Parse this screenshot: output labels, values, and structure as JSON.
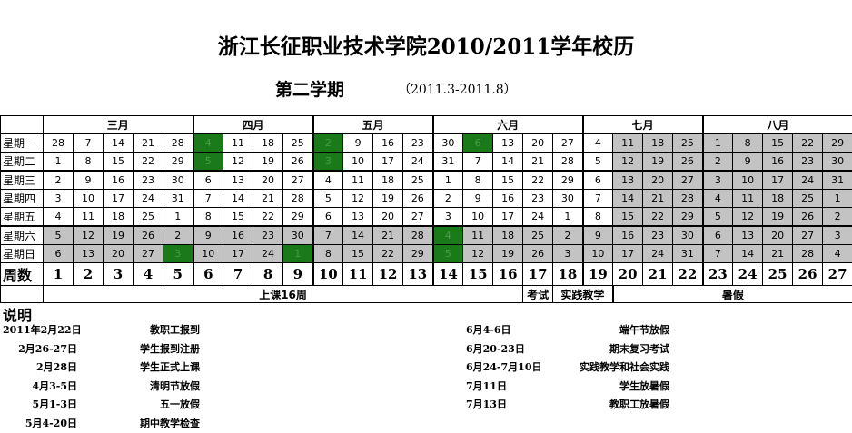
{
  "title": "浙江长征职业技术学院2010/2011学年校历",
  "semester": "第二学期",
  "period": "（2011.3-2011.8）",
  "table": {
    "months": [
      {
        "label": "三月",
        "span": 5
      },
      {
        "label": "四月",
        "span": 4
      },
      {
        "label": "五月",
        "span": 4
      },
      {
        "label": "六月",
        "span": 5
      },
      {
        "label": "七月",
        "span": 4
      },
      {
        "label": "八月",
        "span": 5
      }
    ],
    "weekdays": [
      "星期一",
      "星期二",
      "星期三",
      "星期四",
      "星期五",
      "星期六",
      "星期日"
    ],
    "days": [
      [
        28,
        7,
        14,
        21,
        28,
        4,
        11,
        18,
        25,
        2,
        9,
        16,
        23,
        30,
        6,
        13,
        20,
        27,
        4,
        11,
        18,
        25,
        1,
        8,
        15,
        22,
        29
      ],
      [
        1,
        8,
        15,
        22,
        29,
        5,
        12,
        19,
        26,
        3,
        10,
        17,
        24,
        31,
        7,
        14,
        21,
        28,
        5,
        12,
        19,
        26,
        2,
        9,
        16,
        23,
        30
      ],
      [
        2,
        9,
        16,
        23,
        30,
        6,
        13,
        20,
        27,
        4,
        11,
        18,
        25,
        1,
        8,
        15,
        22,
        29,
        6,
        13,
        20,
        27,
        3,
        10,
        17,
        24,
        31
      ],
      [
        3,
        10,
        17,
        24,
        31,
        7,
        14,
        21,
        28,
        5,
        12,
        19,
        26,
        2,
        9,
        16,
        23,
        30,
        7,
        14,
        21,
        28,
        4,
        11,
        18,
        25,
        1
      ],
      [
        4,
        11,
        18,
        25,
        1,
        8,
        15,
        22,
        29,
        6,
        13,
        20,
        27,
        3,
        10,
        17,
        24,
        1,
        8,
        15,
        22,
        29,
        5,
        12,
        19,
        26,
        2
      ],
      [
        5,
        12,
        19,
        26,
        2,
        9,
        16,
        23,
        30,
        7,
        14,
        21,
        28,
        4,
        11,
        18,
        25,
        2,
        9,
        16,
        23,
        30,
        6,
        13,
        20,
        27,
        3
      ],
      [
        6,
        13,
        20,
        27,
        3,
        10,
        17,
        24,
        1,
        8,
        15,
        22,
        29,
        5,
        12,
        19,
        26,
        3,
        10,
        17,
        24,
        31,
        7,
        14,
        21,
        28,
        4
      ]
    ],
    "week_label": "周数",
    "weeks": [
      1,
      2,
      3,
      4,
      5,
      6,
      7,
      8,
      9,
      10,
      11,
      12,
      13,
      14,
      15,
      16,
      17,
      18,
      19,
      20,
      21,
      22,
      23,
      24,
      25,
      26,
      27
    ],
    "holiday_cells": [
      [
        0,
        6
      ],
      [
        1,
        6
      ],
      [
        6,
        5
      ],
      [
        6,
        9
      ],
      [
        0,
        10
      ],
      [
        1,
        10
      ],
      [
        0,
        15
      ],
      [
        5,
        14
      ],
      [
        6,
        14
      ]
    ],
    "shaded_weekdays": [
      5,
      6
    ],
    "shaded_weeks": [
      20,
      21,
      22,
      23,
      24,
      25,
      26,
      27
    ],
    "phases": [
      {
        "label": "上课16周",
        "span": 16
      },
      {
        "label": "考试",
        "span": 1
      },
      {
        "label": "实践教学",
        "span": 2
      },
      {
        "label": "暑假",
        "span": 8
      }
    ],
    "colors": {
      "holiday": "#1a7a1a",
      "shaded": "#c3c3c3"
    }
  },
  "notes": {
    "heading": "说明",
    "left": [
      {
        "date": "2011年2月22日",
        "label": "教职工报到"
      },
      {
        "date": "2月26-27日",
        "label": "学生报到注册"
      },
      {
        "date": "2月28日",
        "label": "学生正式上课"
      },
      {
        "date": "4月3-5日",
        "label": "清明节放假"
      },
      {
        "date": "5月1-3日",
        "label": "五一放假"
      },
      {
        "date": "5月4-20日",
        "label": "期中教学检查"
      }
    ],
    "right": [
      {
        "date": "6月4-6日",
        "label": "端午节放假"
      },
      {
        "date": "6月20-23日",
        "label": "期末复习考试"
      },
      {
        "date": "6月24-7月10日",
        "label": "实践教学和社会实践"
      },
      {
        "date": "7月11日",
        "label": "学生放暑假"
      },
      {
        "date": "7月13日",
        "label": "教职工放暑假"
      }
    ]
  }
}
